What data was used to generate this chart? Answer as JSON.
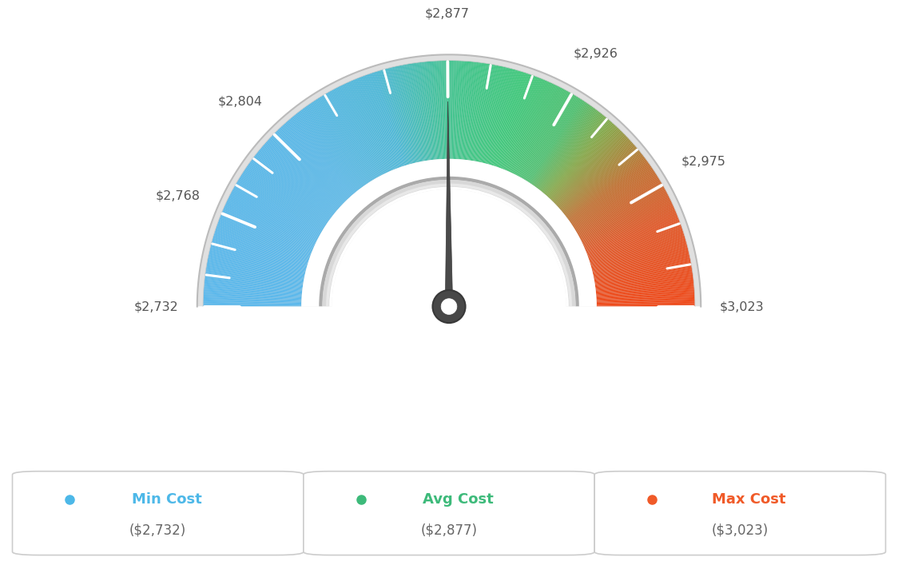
{
  "min_val": 2732,
  "avg_val": 2877,
  "max_val": 3023,
  "tick_labels": [
    "$2,732",
    "$2,768",
    "$2,804",
    "$2,877",
    "$2,926",
    "$2,975",
    "$3,023"
  ],
  "tick_values": [
    2732,
    2768,
    2804,
    2877,
    2926,
    2975,
    3023
  ],
  "legend": [
    {
      "label": "Min Cost",
      "value": "($2,732)",
      "color": "#4db8e8"
    },
    {
      "label": "Avg Cost",
      "value": "($2,877)",
      "color": "#3dba7a"
    },
    {
      "label": "Max Cost",
      "value": "($3,023)",
      "color": "#f05a28"
    }
  ],
  "background_color": "#ffffff",
  "needle_value": 2877,
  "color_stops": [
    [
      0.0,
      "#5ab8ec"
    ],
    [
      0.27,
      "#59b8e8"
    ],
    [
      0.4,
      "#4db8d8"
    ],
    [
      0.5,
      "#43c490"
    ],
    [
      0.6,
      "#3ec87a"
    ],
    [
      0.68,
      "#4ec070"
    ],
    [
      0.73,
      "#85a848"
    ],
    [
      0.8,
      "#c07030"
    ],
    [
      0.88,
      "#e05828"
    ],
    [
      1.0,
      "#f04818"
    ]
  ]
}
